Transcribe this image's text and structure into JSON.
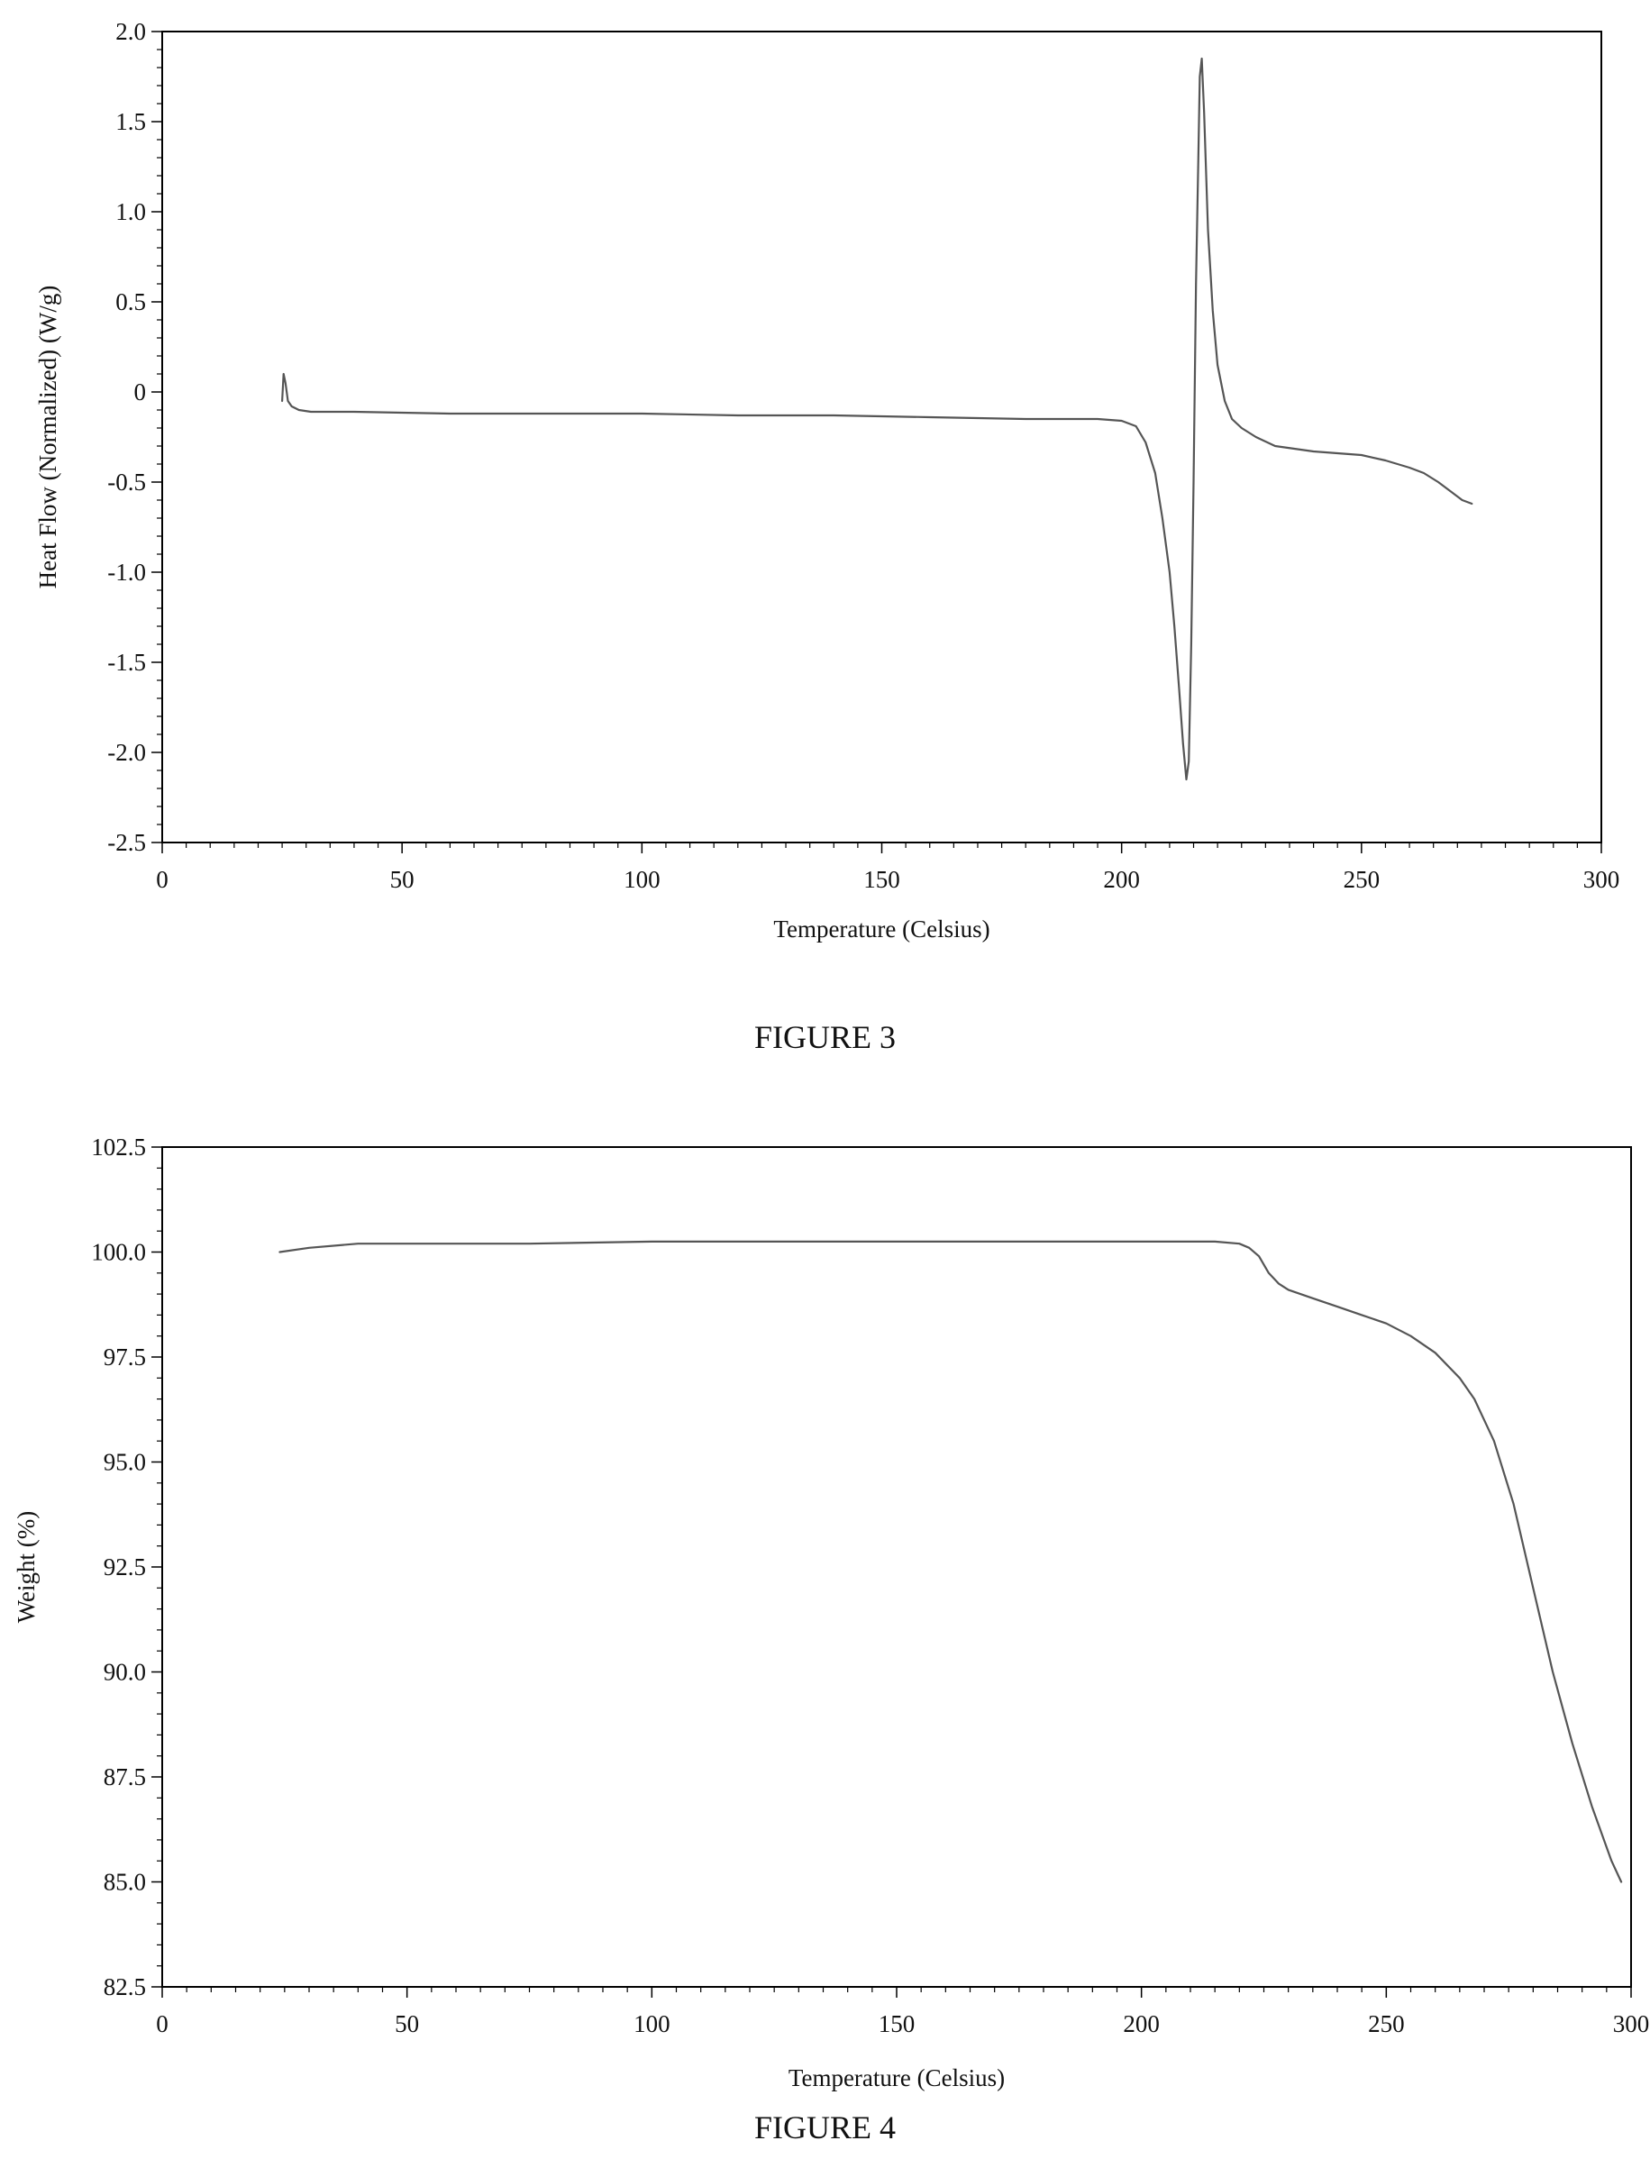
{
  "figures": [
    {
      "caption": "FIGURE 3"
    },
    {
      "caption": "FIGURE 4"
    }
  ],
  "chart_data": [
    {
      "type": "line",
      "title": "",
      "xlabel": "Temperature (Celsius)",
      "ylabel": "Heat Flow (Normalized) (W/g)",
      "xlim": [
        0,
        300
      ],
      "ylim": [
        -2.5,
        2.0
      ],
      "x_ticks": [
        0,
        50,
        100,
        150,
        200,
        250,
        300
      ],
      "x_tick_labels": [
        "0",
        "50",
        "100",
        "150",
        "200",
        "250",
        "300"
      ],
      "y_ticks": [
        2.0,
        1.5,
        1.0,
        0.5,
        0,
        -0.5,
        -1.0,
        -1.5,
        -2.0,
        -2.5
      ],
      "y_tick_labels": [
        "2.0",
        "1.5",
        "1.0",
        "0.5",
        "0",
        "-0.5",
        "-1.0",
        "-1.5",
        "-2.0",
        "-2.5"
      ],
      "grid": false,
      "line_color": "#555555",
      "series": [
        {
          "x": [
            25,
            25.3,
            25.7,
            26.2,
            27,
            28.5,
            31,
            40,
            60,
            80,
            100,
            120,
            140,
            160,
            180,
            195,
            200,
            203,
            205,
            207,
            208.5,
            210,
            211,
            212,
            212.8,
            213.5,
            214,
            214.5,
            215,
            215.5,
            216,
            216.3,
            216.7,
            217.2,
            218,
            219,
            220,
            221.5,
            223,
            225,
            228,
            232,
            240,
            250,
            255,
            260,
            263,
            266,
            269,
            271,
            273
          ],
          "y": [
            -0.05,
            0.1,
            0.05,
            -0.05,
            -0.08,
            -0.1,
            -0.11,
            -0.11,
            -0.12,
            -0.12,
            -0.12,
            -0.13,
            -0.13,
            -0.14,
            -0.15,
            -0.15,
            -0.16,
            -0.19,
            -0.28,
            -0.45,
            -0.7,
            -1.0,
            -1.3,
            -1.65,
            -1.95,
            -2.15,
            -2.05,
            -1.4,
            -0.5,
            0.6,
            1.3,
            1.75,
            1.85,
            1.55,
            0.9,
            0.45,
            0.15,
            -0.05,
            -0.15,
            -0.2,
            -0.25,
            -0.3,
            -0.33,
            -0.35,
            -0.38,
            -0.42,
            -0.45,
            -0.5,
            -0.56,
            -0.6,
            -0.62
          ]
        }
      ]
    },
    {
      "type": "line",
      "title": "",
      "xlabel": "Temperature (Celsius)",
      "ylabel": "Weight (%)",
      "xlim": [
        0,
        300
      ],
      "ylim": [
        82.5,
        102.5
      ],
      "x_ticks": [
        0,
        50,
        100,
        150,
        200,
        250,
        300
      ],
      "x_tick_labels": [
        "0",
        "50",
        "100",
        "150",
        "200",
        "250",
        "300"
      ],
      "y_ticks": [
        102.5,
        100.0,
        97.5,
        95.0,
        92.5,
        90.0,
        87.5,
        85.0,
        82.5
      ],
      "y_tick_labels": [
        "102.5",
        "100.0",
        "97.5",
        "95.0",
        "92.5",
        "90.0",
        "87.5",
        "85.0",
        "82.5"
      ],
      "grid": false,
      "line_color": "#555555",
      "series": [
        {
          "x": [
            24,
            30,
            40,
            50,
            75,
            100,
            125,
            150,
            175,
            200,
            215,
            220,
            222,
            224,
            226,
            228,
            230,
            235,
            240,
            245,
            250,
            255,
            260,
            265,
            268,
            272,
            276,
            280,
            284,
            288,
            292,
            296,
            298
          ],
          "y": [
            100.0,
            100.1,
            100.2,
            100.2,
            100.2,
            100.25,
            100.25,
            100.25,
            100.25,
            100.25,
            100.25,
            100.2,
            100.1,
            99.9,
            99.5,
            99.25,
            99.1,
            98.9,
            98.7,
            98.5,
            98.3,
            98.0,
            97.6,
            97.0,
            96.5,
            95.5,
            94.0,
            92.0,
            90.0,
            88.3,
            86.8,
            85.5,
            85.0
          ]
        }
      ]
    }
  ]
}
